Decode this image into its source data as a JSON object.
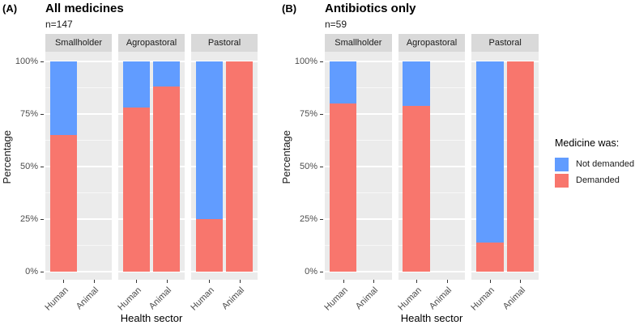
{
  "chart_data": {
    "type": "bar",
    "stacked": true,
    "orientation": "vertical",
    "unit": "percent",
    "categories": [
      "Human",
      "Animal"
    ],
    "xlabel": "Health sector",
    "ylabel": "Percentage",
    "yticks": [
      "0%",
      "25%",
      "50%",
      "75%",
      "100%"
    ],
    "ylim": [
      0,
      100
    ],
    "grid": "white major and minor gridlines on gray panel",
    "panel_background": "#EBEBEB",
    "strip_background": "#D9D9D9",
    "legend": {
      "title": "Medicine was:",
      "position": "right",
      "entries": [
        {
          "label": "Not demanded",
          "color": "#619CFF"
        },
        {
          "label": "Demanded",
          "color": "#F8766D"
        }
      ]
    },
    "panels": [
      {
        "tag": "(A)",
        "title": "All medicines",
        "subtitle": "n=147",
        "facets": [
          {
            "label": "Smallholder",
            "bars": [
              {
                "x": "Human",
                "demanded": 65,
                "not_demanded": 35
              },
              {
                "x": "Animal",
                "demanded": null,
                "not_demanded": null
              }
            ]
          },
          {
            "label": "Agropastoral",
            "bars": [
              {
                "x": "Human",
                "demanded": 78,
                "not_demanded": 22
              },
              {
                "x": "Animal",
                "demanded": 88,
                "not_demanded": 12
              }
            ]
          },
          {
            "label": "Pastoral",
            "bars": [
              {
                "x": "Human",
                "demanded": 25,
                "not_demanded": 75
              },
              {
                "x": "Animal",
                "demanded": 100,
                "not_demanded": 0
              }
            ]
          }
        ]
      },
      {
        "tag": "(B)",
        "title": "Antibiotics only",
        "subtitle": "n=59",
        "facets": [
          {
            "label": "Smallholder",
            "bars": [
              {
                "x": "Human",
                "demanded": 80,
                "not_demanded": 20
              },
              {
                "x": "Animal",
                "demanded": null,
                "not_demanded": null
              }
            ]
          },
          {
            "label": "Agropastoral",
            "bars": [
              {
                "x": "Human",
                "demanded": 79,
                "not_demanded": 21
              },
              {
                "x": "Animal",
                "demanded": null,
                "not_demanded": null
              }
            ]
          },
          {
            "label": "Pastoral",
            "bars": [
              {
                "x": "Human",
                "demanded": 14,
                "not_demanded": 86
              },
              {
                "x": "Animal",
                "demanded": 100,
                "not_demanded": 0
              }
            ]
          }
        ]
      }
    ]
  }
}
